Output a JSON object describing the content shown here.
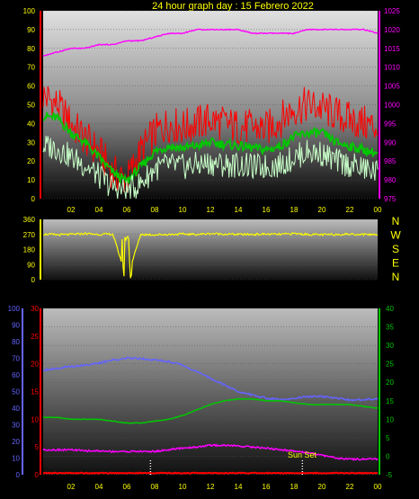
{
  "title": "24 hour graph day : 15 Febrero 2022",
  "x_ticks": [
    "02",
    "04",
    "06",
    "08",
    "10",
    "12",
    "14",
    "16",
    "18",
    "20",
    "22",
    "00"
  ],
  "compass": [
    "N",
    "W",
    "S",
    "E",
    "N"
  ],
  "annotation": "Sun Set",
  "colors": {
    "title": "#ffff00",
    "panel_top": "#dcdcdc",
    "panel_bottom": "#101010",
    "red": "#ff0000",
    "green": "#00c800",
    "light_green": "#c8ffc8",
    "magenta": "#ff00ff",
    "yellow": "#ffff00",
    "blue": "#6464ff",
    "tick_text": "#ffff00"
  },
  "chart_data": [
    {
      "type": "line",
      "title": "24 hour graph day : 15 Febrero 2022",
      "x": [
        0,
        1,
        2,
        3,
        4,
        5,
        6,
        7,
        8,
        9,
        10,
        11,
        12,
        13,
        14,
        15,
        16,
        17,
        18,
        19,
        20,
        21,
        22,
        23,
        24
      ],
      "ylim": [
        0,
        100
      ],
      "yticks_left": [
        "100",
        "90",
        "80",
        "70",
        "60",
        "50",
        "40",
        "30",
        "20",
        "10",
        "0"
      ],
      "ylim_right": [
        975,
        1025
      ],
      "yticks_right": [
        "1025",
        "1020",
        "1015",
        "1010",
        "1005",
        "1000",
        "995",
        "990",
        "985",
        "980",
        "975"
      ],
      "series": [
        {
          "color": "red",
          "axis": "left",
          "values": [
            55,
            50,
            40,
            32,
            25,
            14,
            10,
            25,
            35,
            40,
            38,
            40,
            42,
            40,
            38,
            38,
            37,
            42,
            48,
            50,
            48,
            45,
            42,
            40,
            38
          ]
        },
        {
          "color": "green",
          "axis": "left",
          "values": [
            44,
            43,
            35,
            30,
            22,
            14,
            9,
            17,
            25,
            28,
            27,
            28,
            30,
            29,
            28,
            27,
            26,
            28,
            33,
            35,
            35,
            30,
            28,
            26,
            24
          ]
        },
        {
          "color": "light_green",
          "axis": "left",
          "values": [
            28,
            27,
            22,
            18,
            12,
            6,
            4,
            8,
            16,
            18,
            17,
            18,
            19,
            18,
            18,
            17,
            17,
            18,
            22,
            25,
            24,
            20,
            18,
            16,
            14
          ]
        },
        {
          "color": "magenta",
          "axis": "right",
          "values": [
            1013,
            1014,
            1015,
            1015,
            1016,
            1016,
            1017,
            1017,
            1018,
            1019,
            1019,
            1020,
            1020,
            1020,
            1020,
            1019,
            1019,
            1019,
            1019,
            1020,
            1020,
            1020,
            1020,
            1020,
            1019
          ]
        }
      ]
    },
    {
      "type": "line",
      "ylim": [
        0,
        360
      ],
      "yticks": [
        "360",
        "270",
        "180",
        "90",
        "0"
      ],
      "series": [
        {
          "color": "yellow",
          "values": [
            272,
            268,
            270,
            275,
            270,
            272,
            5,
            270,
            268,
            270,
            272,
            270,
            275,
            272,
            270,
            270,
            272,
            270,
            275,
            270,
            268,
            270,
            272,
            270,
            270
          ]
        }
      ]
    },
    {
      "type": "line",
      "ylim_far_left": [
        0,
        100
      ],
      "yticks_far_left": [
        "100",
        "90",
        "80",
        "70",
        "60",
        "50",
        "40",
        "30",
        "20",
        "10",
        "0"
      ],
      "ylim_left": [
        0,
        30
      ],
      "yticks_left": [
        "30",
        "25",
        "20",
        "15",
        "10",
        "5",
        "0"
      ],
      "ylim_right": [
        -5,
        40
      ],
      "yticks_right": [
        "40",
        "35",
        "30",
        "25",
        "20",
        "15",
        "10",
        "5",
        "0",
        "-5"
      ],
      "series": [
        {
          "color": "blue",
          "axis": "far_left",
          "values": [
            63,
            64,
            65,
            66,
            67,
            69,
            70,
            70,
            69,
            68,
            66,
            62,
            58,
            54,
            50,
            48,
            46,
            45,
            46,
            47,
            47,
            46,
            45,
            45,
            46
          ]
        },
        {
          "color": "green",
          "axis": "right",
          "values": [
            10.5,
            10.5,
            10,
            10,
            10,
            9.5,
            9,
            9,
            9.5,
            10,
            11,
            12.5,
            14,
            15,
            15.5,
            15.5,
            15,
            15,
            14.5,
            14,
            14,
            14,
            14,
            13.5,
            13
          ]
        },
        {
          "color": "magenta",
          "axis": "left",
          "values": [
            4.5,
            4.5,
            4.5,
            4.3,
            4.3,
            4.2,
            4.2,
            4.2,
            4.2,
            4.5,
            4.8,
            5.0,
            5.3,
            5.3,
            5.2,
            5.0,
            4.8,
            4.5,
            4.3,
            4.0,
            3.5,
            3.0,
            2.8,
            2.8,
            2.8
          ]
        },
        {
          "color": "red",
          "axis": "left",
          "values": [
            0.3,
            0.3,
            0.3,
            0.3,
            0.3,
            0.3,
            0.3,
            0.3,
            0.3,
            0.3,
            0.3,
            0.3,
            0.3,
            0.3,
            0.3,
            0.3,
            0.3,
            0.3,
            0.3,
            0.3,
            0.3,
            0.3,
            0.3,
            0.3,
            0.3
          ]
        }
      ]
    }
  ]
}
